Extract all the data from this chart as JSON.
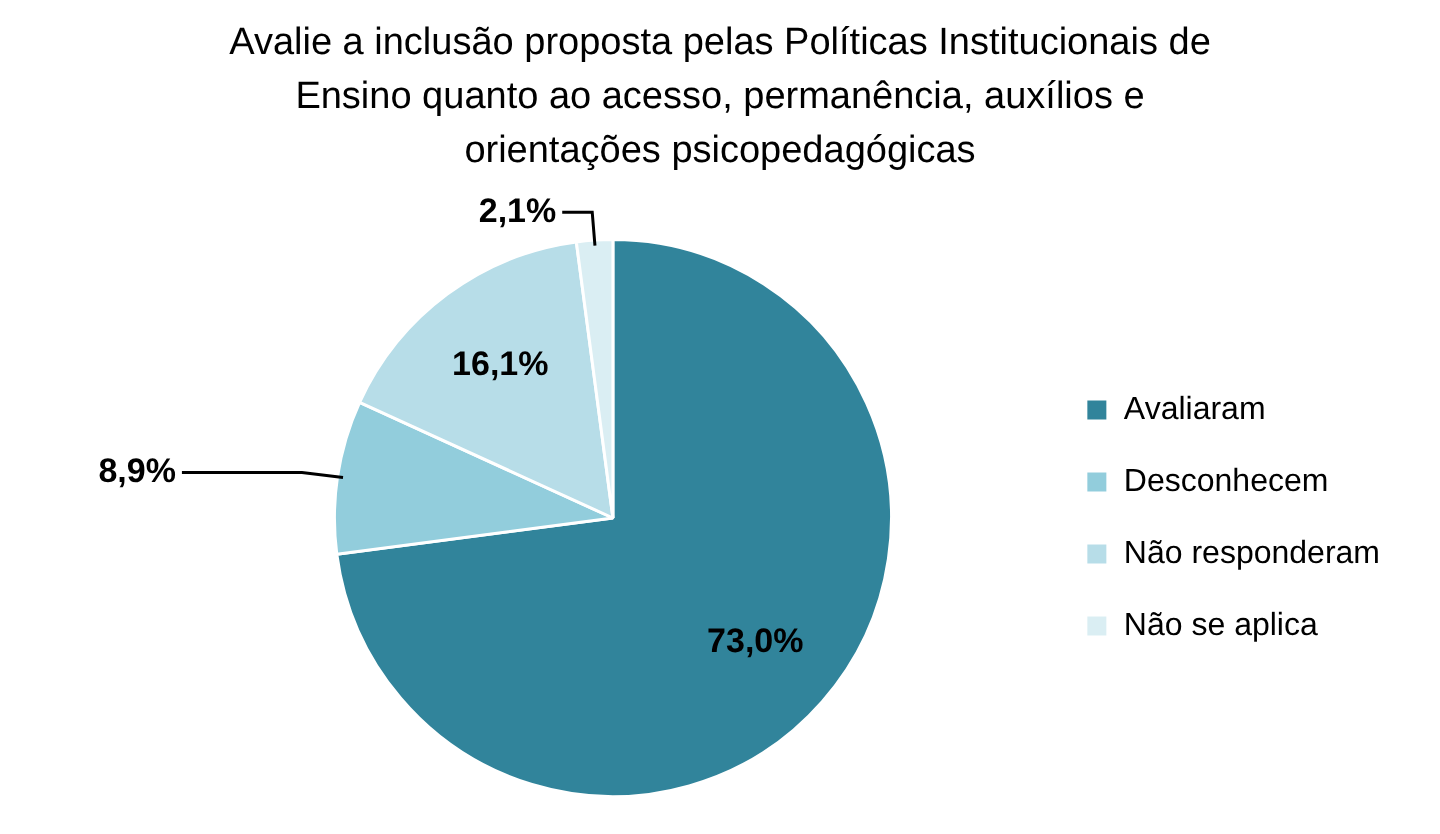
{
  "chart_data": {
    "type": "pie",
    "title": "Avalie a inclusão proposta pelas Políticas Institucionais de Ensino quanto ao acesso, permanência, auxílios e orientações psicopedagógicas",
    "categories": [
      "Avaliaram",
      "Desconhecem",
      "Não responderam",
      "Não se aplica"
    ],
    "values": [
      73.0,
      8.9,
      16.1,
      2.1
    ],
    "colors": [
      "#31849b",
      "#92cddc",
      "#b7dde8",
      "#daeef3"
    ],
    "value_labels": [
      "73,0%",
      "8,9%",
      "16,1%",
      "2,1%"
    ],
    "legend": "right"
  }
}
